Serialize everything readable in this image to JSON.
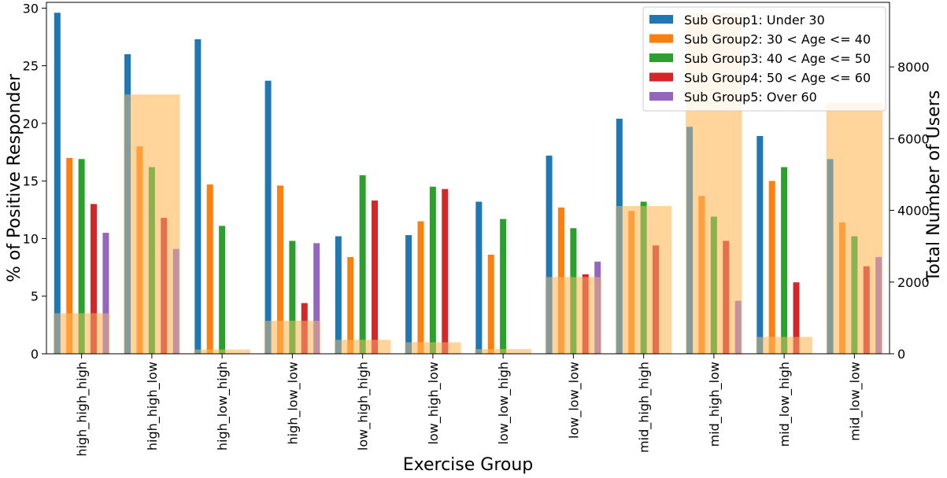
{
  "chart_data": {
    "type": "bar",
    "xlabel": "Exercise Group",
    "ylabel": "% of Positive Responder",
    "y2label": "Total Number of Users",
    "ylim": [
      0,
      30.5
    ],
    "y2lim": [
      0,
      9800
    ],
    "yticks": [
      "0",
      "5",
      "10",
      "15",
      "20",
      "25",
      "30"
    ],
    "y2ticks": [
      "0",
      "2000",
      "4000",
      "6000",
      "8000"
    ],
    "legend_position": "top-right",
    "grid": false,
    "categories": [
      "high_high_high",
      "high_high_low",
      "high_low_high",
      "high_low_low",
      "low_high_high",
      "low_high_low",
      "low_low_high",
      "low_low_low",
      "mid_high_high",
      "mid_high_low",
      "mid_low_high",
      "mid_low_low"
    ],
    "series": [
      {
        "name": "Sub Group1: Under 30",
        "color": "#1f77b4",
        "values": [
          29.6,
          26.0,
          27.3,
          23.7,
          10.2,
          10.3,
          13.2,
          17.2,
          20.4,
          19.7,
          18.9,
          16.9
        ]
      },
      {
        "name": "Sub Group2: 30 < Age <= 40",
        "color": "#ff7f0e",
        "values": [
          17.0,
          18.0,
          14.7,
          14.6,
          8.4,
          11.5,
          8.6,
          12.7,
          12.4,
          13.7,
          15.0,
          11.4
        ]
      },
      {
        "name": "Sub Group3: 40 < Age <= 50",
        "color": "#2ca02c",
        "values": [
          16.9,
          16.2,
          11.1,
          9.8,
          15.5,
          14.5,
          11.7,
          10.9,
          13.2,
          11.9,
          16.2,
          10.2
        ]
      },
      {
        "name": "Sub Group4: 50 < Age <= 60",
        "color": "#d62728",
        "values": [
          13.0,
          11.8,
          0,
          4.4,
          13.3,
          14.3,
          0,
          6.9,
          9.4,
          9.8,
          6.2,
          7.6
        ]
      },
      {
        "name": "Sub Group5: Over 60",
        "color": "#9467bd",
        "values": [
          10.5,
          9.1,
          0,
          9.6,
          0,
          0,
          0,
          8.0,
          0,
          4.6,
          0,
          8.4
        ]
      }
    ],
    "users_series": {
      "color": "#ffc87a",
      "values": [
        1130,
        7230,
        120,
        920,
        390,
        320,
        130,
        2140,
        4120,
        9500,
        470,
        7000
      ]
    }
  }
}
